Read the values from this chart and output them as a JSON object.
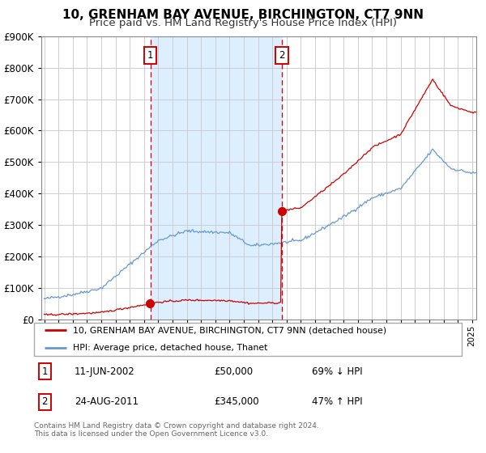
{
  "title": "10, GRENHAM BAY AVENUE, BIRCHINGTON, CT7 9NN",
  "subtitle": "Price paid vs. HM Land Registry's House Price Index (HPI)",
  "legend_line1": "10, GRENHAM BAY AVENUE, BIRCHINGTON, CT7 9NN (detached house)",
  "legend_line2": "HPI: Average price, detached house, Thanet",
  "ann1_date": "11-JUN-2002",
  "ann1_price": "£50,000",
  "ann1_hpi": "69% ↓ HPI",
  "ann2_date": "24-AUG-2011",
  "ann2_price": "£345,000",
  "ann2_hpi": "47% ↑ HPI",
  "footer": "Contains HM Land Registry data © Crown copyright and database right 2024.\nThis data is licensed under the Open Government Licence v3.0.",
  "red_color": "#cc0000",
  "blue_color": "#6699cc",
  "shade_color": "#ddeeff",
  "purchase1_year": 2002.44,
  "purchase1_value": 50000,
  "purchase2_year": 2011.65,
  "purchase2_value": 345000,
  "ylim": [
    0,
    900000
  ],
  "yticks": [
    0,
    100000,
    200000,
    300000,
    400000,
    500000,
    600000,
    700000,
    800000,
    900000
  ],
  "year_start": 1995,
  "year_end": 2025
}
